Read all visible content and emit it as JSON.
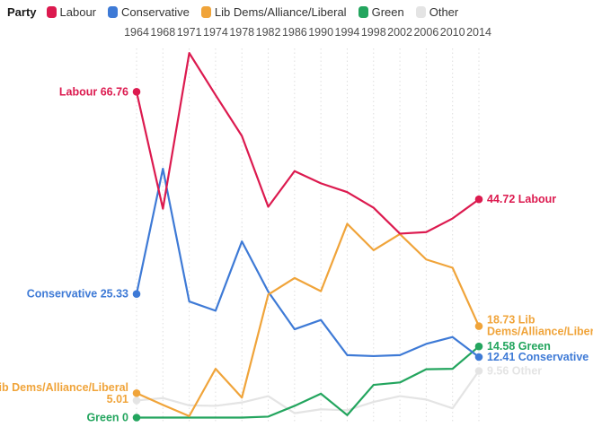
{
  "legend": {
    "title": "Party",
    "items": [
      {
        "label": "Labour",
        "color": "#dc1a4f"
      },
      {
        "label": "Conservative",
        "color": "#3e7ad6"
      },
      {
        "label": "Lib Dems/Alliance/Liberal",
        "color": "#f0a43a"
      },
      {
        "label": "Green",
        "color": "#23a55e"
      },
      {
        "label": "Other",
        "color": "#e4e4e4"
      }
    ]
  },
  "chart_data": {
    "type": "line",
    "title": "",
    "xlabel": "",
    "ylabel": "",
    "x": [
      1964,
      1968,
      1971,
      1974,
      1978,
      1982,
      1986,
      1990,
      1994,
      1998,
      2002,
      2006,
      2010,
      2014
    ],
    "ylim": [
      0,
      80
    ],
    "grid": "vertical-dotted",
    "legend_position": "top-left",
    "series": [
      {
        "id": "labour",
        "name": "Labour",
        "color": "#dc1a4f",
        "values": [
          66.76,
          42.8,
          74.7,
          66.1,
          57.7,
          43.2,
          50.5,
          48.0,
          46.2,
          43.0,
          37.7,
          38.0,
          40.8,
          44.72
        ],
        "start_label_lines": [
          "Labour 66.76"
        ],
        "end_label_lines": [
          "44.72 Labour"
        ]
      },
      {
        "id": "conservative",
        "name": "Conservative",
        "color": "#3e7ad6",
        "values": [
          25.33,
          51.0,
          23.8,
          21.9,
          36.1,
          25.8,
          18.1,
          20.0,
          12.8,
          12.6,
          12.8,
          15.1,
          16.5,
          12.41
        ],
        "start_label_lines": [
          "Conservative 25.33"
        ],
        "end_label_lines": [
          "12.41 Conservative"
        ]
      },
      {
        "id": "libdem",
        "name": "Lib Dems/Alliance/Liberal",
        "color": "#f0a43a",
        "values": [
          5.01,
          2.6,
          0.3,
          10.0,
          4.1,
          25.2,
          28.6,
          25.9,
          39.7,
          34.3,
          37.6,
          32.4,
          30.7,
          18.73
        ],
        "start_label_lines": [
          "Lib Dems/Alliance/Liberal",
          "5.01"
        ],
        "end_label_lines": [
          "18.73 Lib",
          "Dems/Alliance/Liberal"
        ]
      },
      {
        "id": "green",
        "name": "Green",
        "color": "#23a55e",
        "values": [
          0,
          0,
          0,
          0,
          0,
          0.2,
          2.4,
          4.9,
          0.5,
          6.7,
          7.2,
          9.9,
          10.0,
          14.58
        ],
        "start_label_lines": [
          "Green 0"
        ],
        "end_label_lines": [
          "14.58 Green"
        ]
      },
      {
        "id": "other",
        "name": "Other",
        "color": "#e4e4e4",
        "values": [
          3.5,
          4.0,
          2.5,
          2.4,
          3.1,
          4.4,
          0.9,
          1.7,
          1.5,
          3.2,
          4.4,
          3.7,
          1.9,
          9.56
        ],
        "start_label_lines": null,
        "end_label_lines": [
          "9.56 Other"
        ]
      }
    ]
  }
}
